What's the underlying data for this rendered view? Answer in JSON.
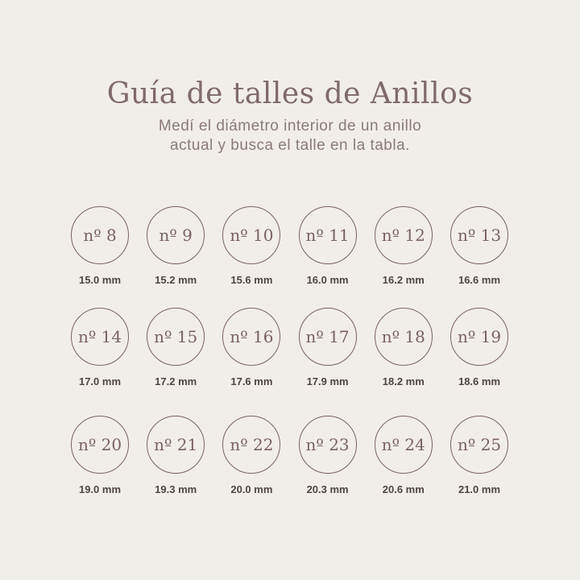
{
  "header": {
    "title": "Guía de talles de Anillos",
    "subtitle_line1": "Medí el diámetro interior de un anillo",
    "subtitle_line2": "actual y busca el talle en la tabla."
  },
  "colors": {
    "background": "#f1eeea",
    "accent": "#7a6264",
    "text": "#4f4546"
  },
  "sizes": [
    {
      "label": "nº 8",
      "mm": "15.0 mm"
    },
    {
      "label": "nº 9",
      "mm": "15.2 mm"
    },
    {
      "label": "nº 10",
      "mm": "15.6 mm"
    },
    {
      "label": "nº 11",
      "mm": "16.0 mm"
    },
    {
      "label": "nº 12",
      "mm": "16.2 mm"
    },
    {
      "label": "nº 13",
      "mm": "16.6 mm"
    },
    {
      "label": "nº 14",
      "mm": "17.0 mm"
    },
    {
      "label": "nº 15",
      "mm": "17.2 mm"
    },
    {
      "label": "nº 16",
      "mm": "17.6 mm"
    },
    {
      "label": "nº 17",
      "mm": "17.9 mm"
    },
    {
      "label": "nº 18",
      "mm": "18.2 mm"
    },
    {
      "label": "nº 19",
      "mm": "18.6 mm"
    },
    {
      "label": "nº 20",
      "mm": "19.0 mm"
    },
    {
      "label": "nº 21",
      "mm": "19.3 mm"
    },
    {
      "label": "nº 22",
      "mm": "20.0 mm"
    },
    {
      "label": "nº 23",
      "mm": "20.3 mm"
    },
    {
      "label": "nº 24",
      "mm": "20.6 mm"
    },
    {
      "label": "nº 25",
      "mm": "21.0 mm"
    }
  ]
}
